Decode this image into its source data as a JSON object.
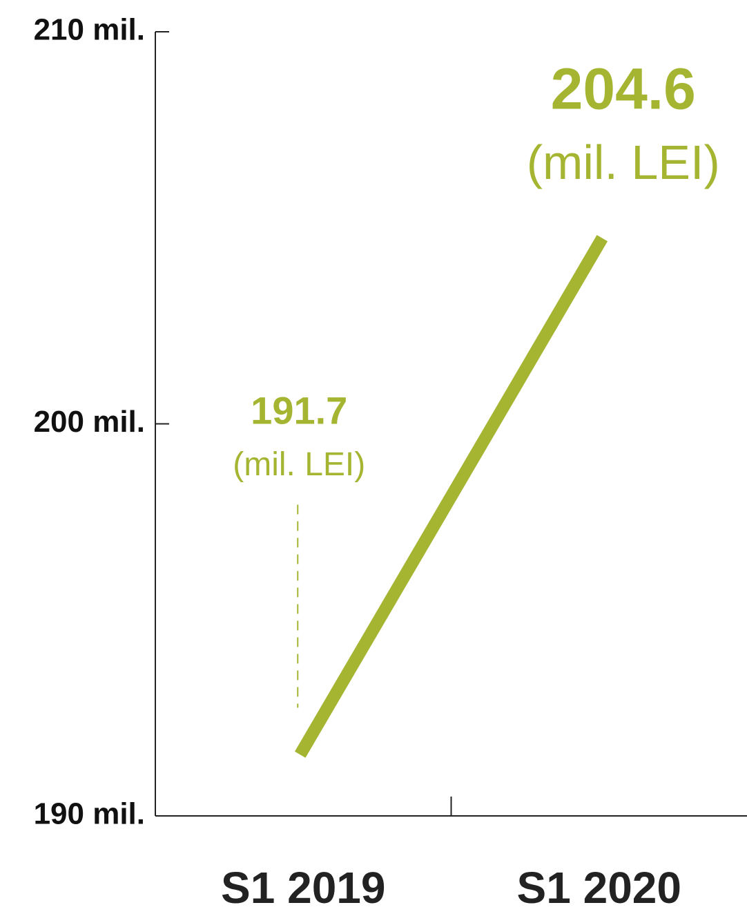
{
  "chart_data": {
    "type": "line",
    "categories": [
      "S1 2019",
      "S1 2020"
    ],
    "values": [
      191.7,
      204.6
    ],
    "value_labels": [
      "191.7",
      "204.6"
    ],
    "value_units": [
      "(mil. LEI)",
      "(mil. LEI)"
    ],
    "color": "#a5b531",
    "ylim": [
      190,
      210
    ],
    "yticks": [
      {
        "value": 190,
        "label": "190 mil."
      },
      {
        "value": 200,
        "label": "200 mil."
      },
      {
        "value": 210,
        "label": "210 mil."
      }
    ],
    "grid": false
  }
}
